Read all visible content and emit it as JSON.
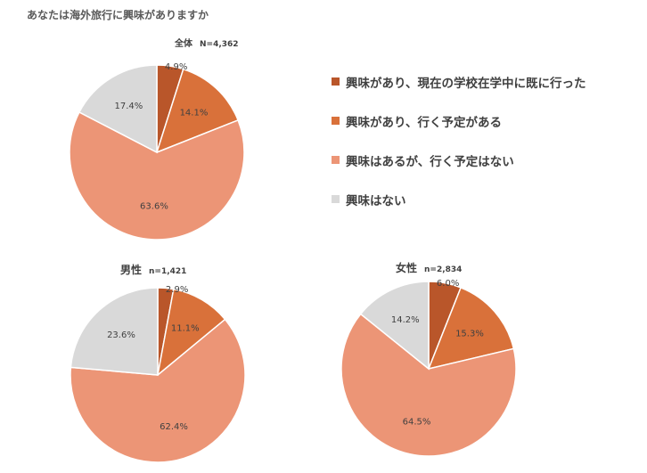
{
  "title": "あなたは海外旅行に興味がありますか",
  "colors": {
    "visited": "#b9562a",
    "planned": "#d9713a",
    "interested_no_plan": "#ec9576",
    "not_interested": "#d9d9d9"
  },
  "legend": [
    {
      "label": "興味があり、現在の学校在学中に既に行った",
      "color": "#b9562a"
    },
    {
      "label": "興味があり、行く予定がある",
      "color": "#d9713a"
    },
    {
      "label": "興味はあるが、行く予定はない",
      "color": "#ec9576"
    },
    {
      "label": "興味はない",
      "color": "#d9d9d9"
    }
  ],
  "chart_data": [
    {
      "type": "pie",
      "subtitle": "全体",
      "n_label": "N=4,362",
      "labels": [
        "興味があり、現在の学校在学中に既に行った",
        "興味があり、行く予定がある",
        "興味はあるが、行く予定はない",
        "興味はない"
      ],
      "values": [
        4.9,
        14.1,
        63.6,
        17.4
      ],
      "value_labels": [
        "4.9%",
        "14.1%",
        "63.6%",
        "17.4%"
      ]
    },
    {
      "type": "pie",
      "subtitle": "男性",
      "n_label": "n=1,421",
      "labels": [
        "興味があり、現在の学校在学中に既に行った",
        "興味があり、行く予定がある",
        "興味はあるが、行く予定はない",
        "興味はない"
      ],
      "values": [
        2.9,
        11.1,
        62.4,
        23.6
      ],
      "value_labels": [
        "2.9%",
        "11.1%",
        "62.4%",
        "23.6%"
      ]
    },
    {
      "type": "pie",
      "subtitle": "女性",
      "n_label": "n=2,834",
      "labels": [
        "興味があり、現在の学校在学中に既に行った",
        "興味があり、行く予定がある",
        "興味はあるが、行く予定はない",
        "興味はない"
      ],
      "values": [
        6.0,
        15.3,
        64.5,
        14.2
      ],
      "value_labels": [
        "6.0%",
        "15.3%",
        "64.5%",
        "14.2%"
      ]
    }
  ]
}
